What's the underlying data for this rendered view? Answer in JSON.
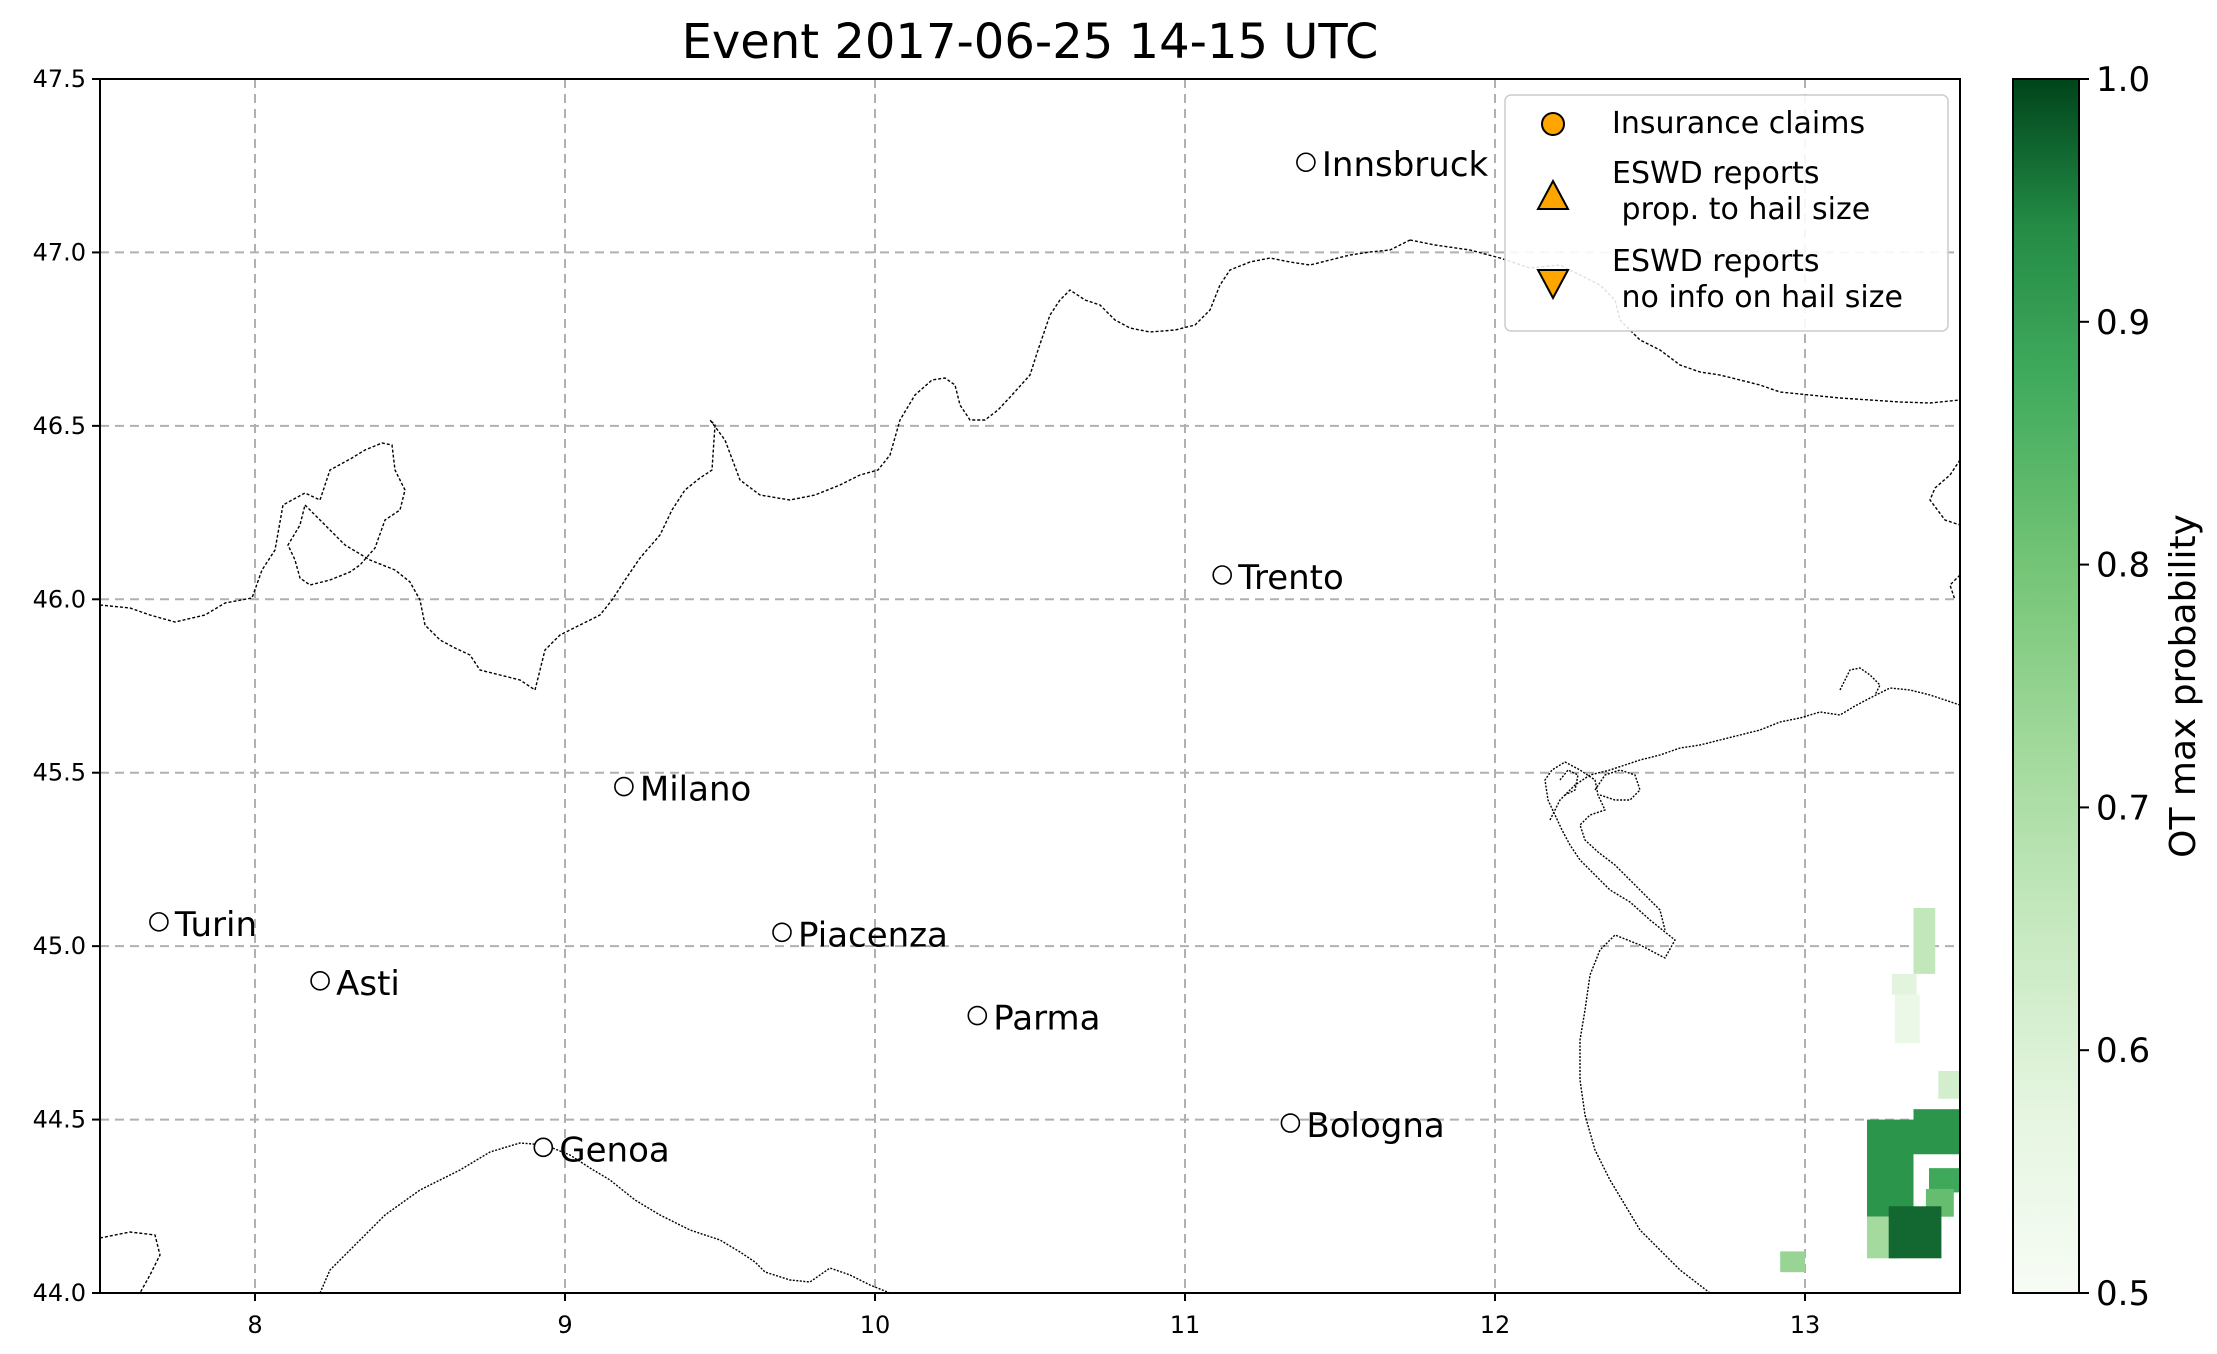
{
  "title": "Event 2017-06-25 14-15 UTC",
  "map": {
    "type": "map",
    "xlim": [
      7.5,
      13.5
    ],
    "ylim": [
      44.0,
      47.5
    ],
    "x_ticks": [
      8,
      9,
      10,
      11,
      12,
      13
    ],
    "y_ticks": [
      44.0,
      44.5,
      45.0,
      45.5,
      46.0,
      46.5,
      47.0,
      47.5
    ],
    "x_tick_labels": [
      "8",
      "9",
      "10",
      "11",
      "12",
      "13"
    ],
    "y_tick_labels": [
      "44.0",
      "44.5",
      "45.0",
      "45.5",
      "46.0",
      "46.5",
      "47.0",
      "47.5"
    ],
    "grid": true,
    "cities": [
      {
        "name": "Innsbruck",
        "lon": 11.39,
        "lat": 47.26
      },
      {
        "name": "Trento",
        "lon": 11.12,
        "lat": 46.07
      },
      {
        "name": "Milano",
        "lon": 9.19,
        "lat": 45.46
      },
      {
        "name": "Turin",
        "lon": 7.69,
        "lat": 45.07
      },
      {
        "name": "Asti",
        "lon": 8.21,
        "lat": 44.9
      },
      {
        "name": "Piacenza",
        "lon": 9.7,
        "lat": 45.04
      },
      {
        "name": "Parma",
        "lon": 10.33,
        "lat": 44.8
      },
      {
        "name": "Bologna",
        "lon": 11.34,
        "lat": 44.49
      },
      {
        "name": "Genoa",
        "lon": 8.93,
        "lat": 44.42
      }
    ],
    "probability_cells": [
      {
        "lon0": 13.2,
        "lat0": 44.22,
        "lon1": 13.35,
        "lat1": 44.5,
        "p": 0.92
      },
      {
        "lon0": 13.35,
        "lat0": 44.4,
        "lon1": 13.5,
        "lat1": 44.53,
        "p": 0.92
      },
      {
        "lon0": 13.4,
        "lat0": 44.29,
        "lon1": 13.5,
        "lat1": 44.36,
        "p": 0.88
      },
      {
        "lon0": 13.39,
        "lat0": 44.22,
        "lon1": 13.48,
        "lat1": 44.3,
        "p": 0.82
      },
      {
        "lon0": 13.2,
        "lat0": 44.1,
        "lon1": 13.31,
        "lat1": 44.22,
        "p": 0.72
      },
      {
        "lon0": 13.27,
        "lat0": 44.1,
        "lon1": 13.44,
        "lat1": 44.25,
        "p": 0.97
      },
      {
        "lon0": 12.92,
        "lat0": 44.06,
        "lon1": 13.0,
        "lat1": 44.12,
        "p": 0.74
      },
      {
        "lon0": 13.43,
        "lat0": 44.56,
        "lon1": 13.5,
        "lat1": 44.64,
        "p": 0.62
      },
      {
        "lon0": 13.35,
        "lat0": 44.92,
        "lon1": 13.42,
        "lat1": 45.11,
        "p": 0.66
      },
      {
        "lon0": 13.28,
        "lat0": 44.86,
        "lon1": 13.36,
        "lat1": 44.92,
        "p": 0.58
      },
      {
        "lon0": 13.29,
        "lat0": 44.72,
        "lon1": 13.37,
        "lat1": 44.86,
        "p": 0.55
      }
    ]
  },
  "legend": {
    "position": "top-right",
    "items": [
      {
        "label_lines": [
          "Insurance claims"
        ],
        "marker": "circle",
        "color": "#FFA500"
      },
      {
        "label_lines": [
          "ESWD reports",
          " prop. to hail size"
        ],
        "marker": "triangle-up",
        "color": "#FFA500"
      },
      {
        "label_lines": [
          "ESWD reports",
          " no info on hail size"
        ],
        "marker": "triangle-down",
        "color": "#FFA500"
      }
    ]
  },
  "colorbar": {
    "label": "OT max probability",
    "range": [
      0.5,
      1.0
    ],
    "ticks": [
      "0.5",
      "0.6",
      "0.7",
      "0.8",
      "0.9",
      "1.0"
    ],
    "colormap": "Greens",
    "color_low": "#f7fcf5",
    "color_high": "#00441b"
  }
}
